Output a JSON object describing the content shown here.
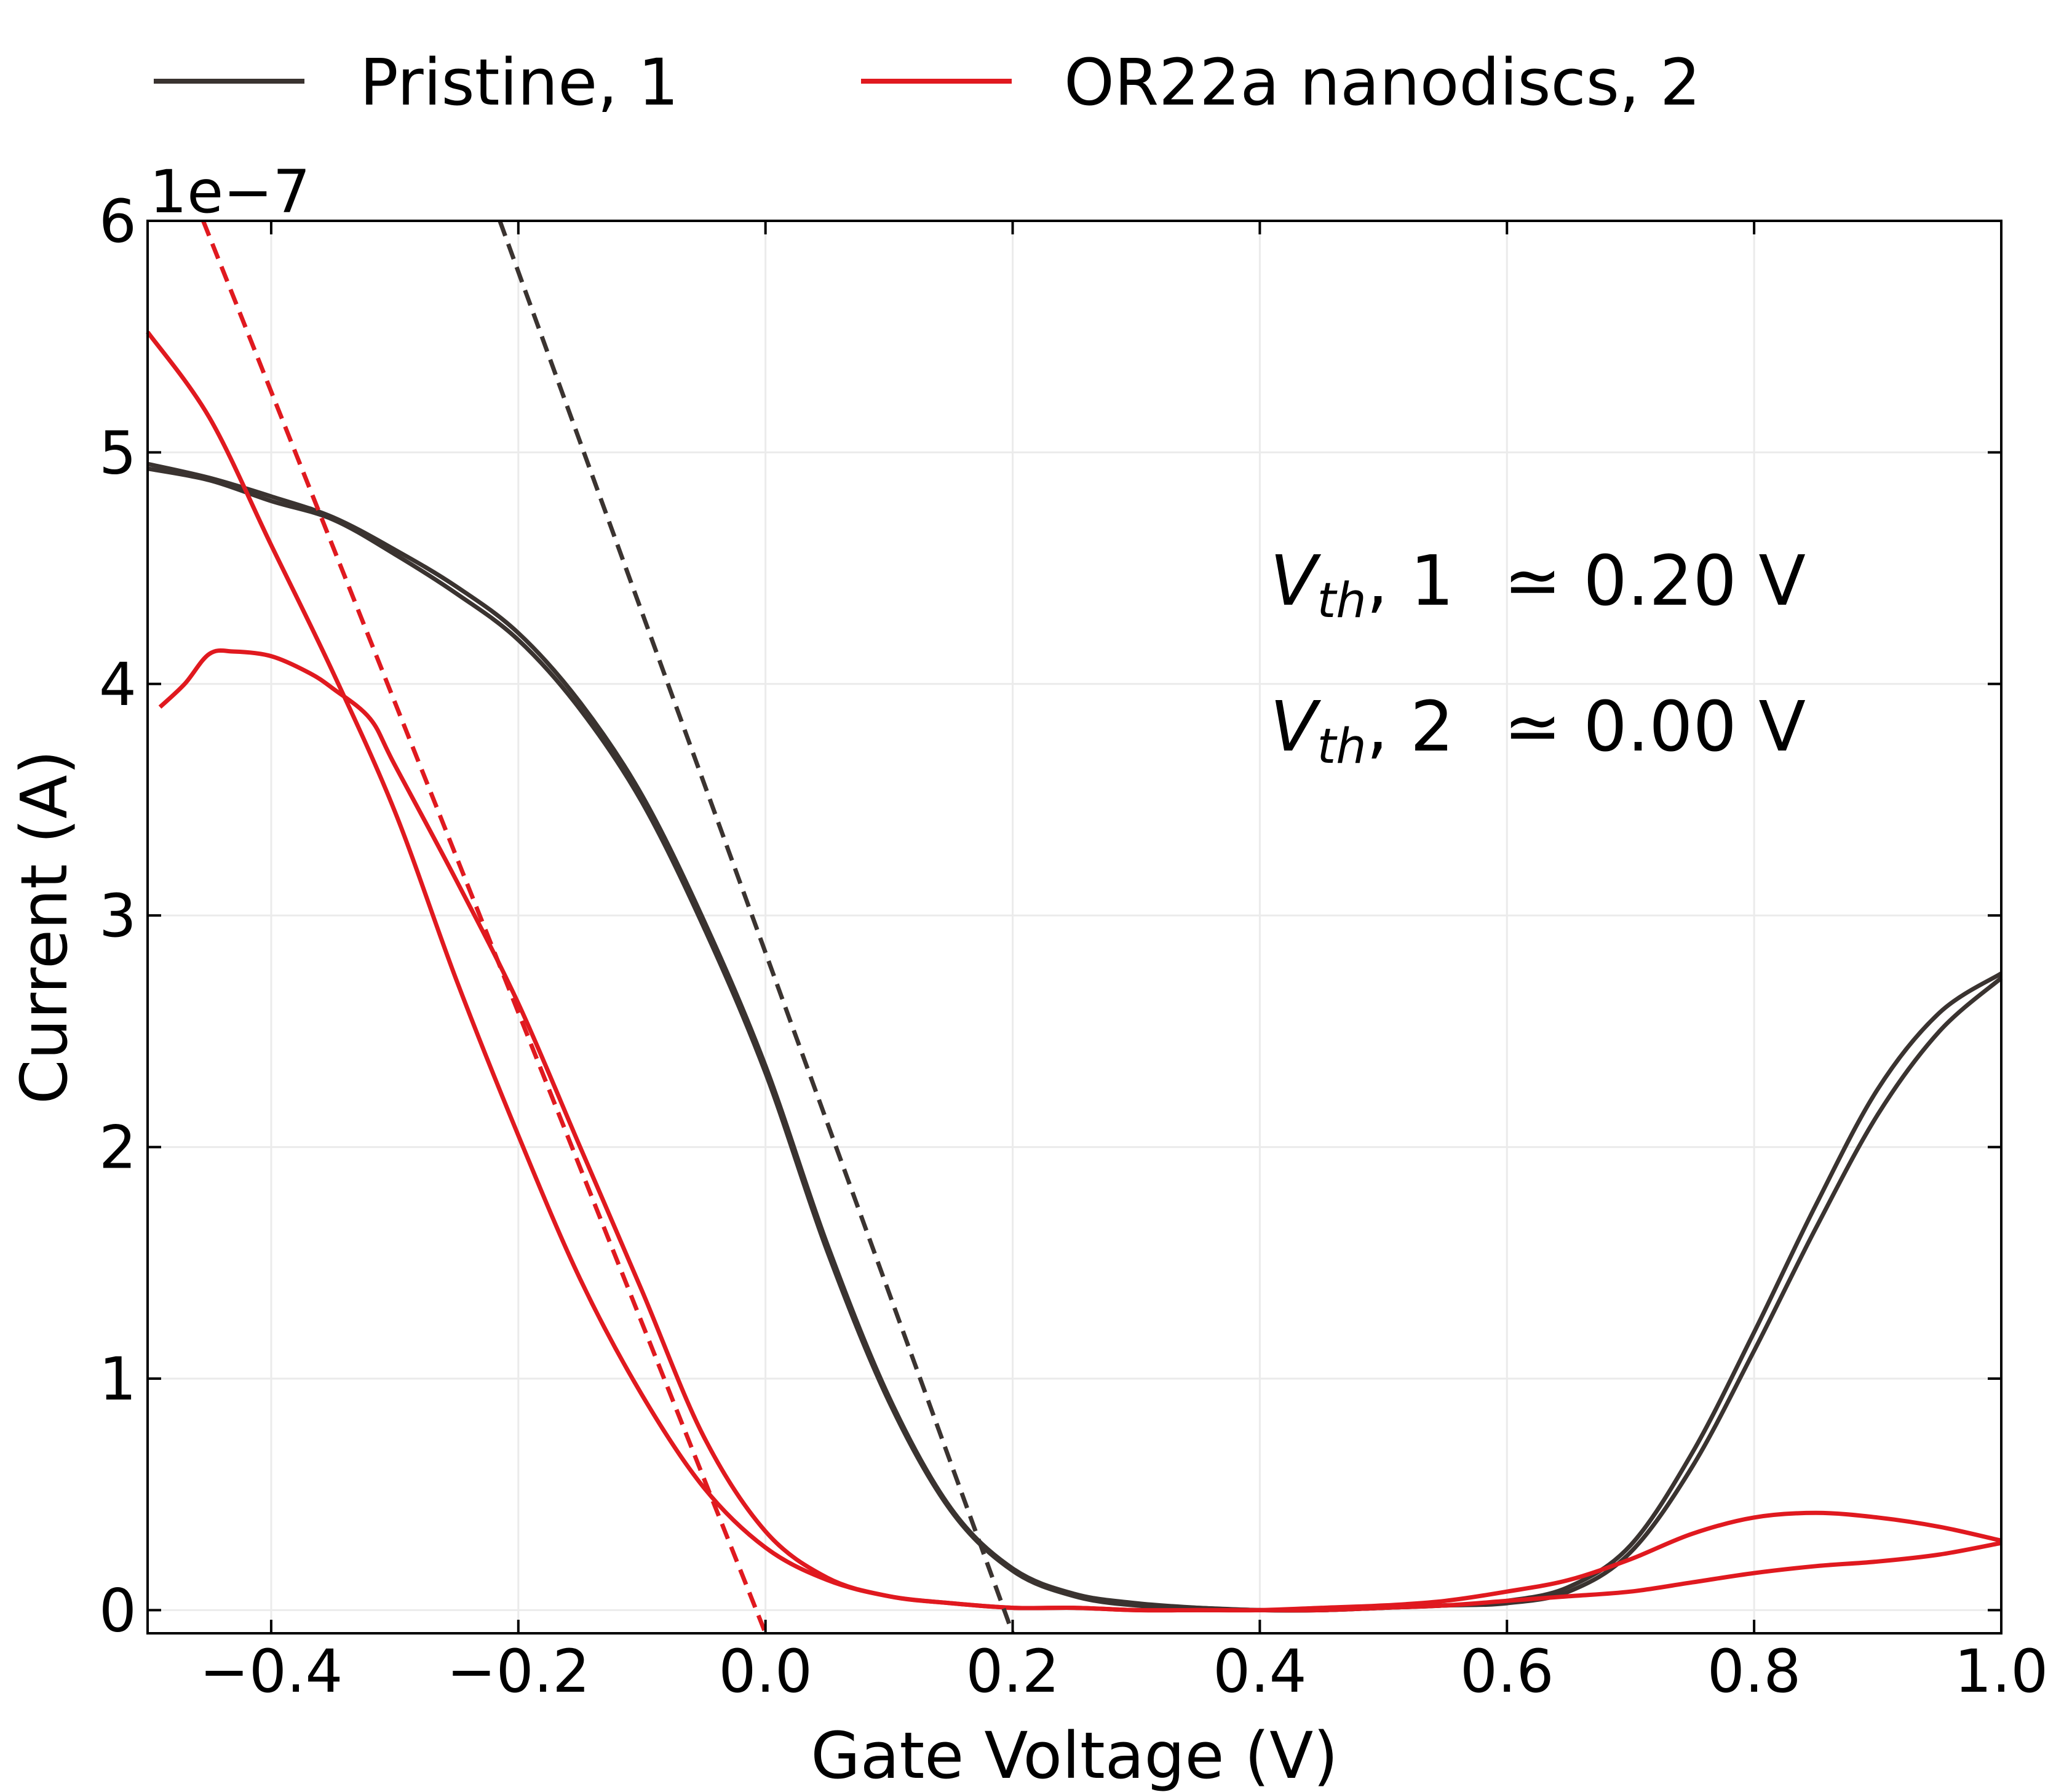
{
  "chart_data": {
    "type": "line",
    "xlabel": "Gate Voltage (V)",
    "ylabel": "Current (A)",
    "y_scale_label": "1e−7",
    "xlim": [
      -0.5,
      1.0
    ],
    "ylim": [
      -0.1,
      6.0
    ],
    "xticks": [
      -0.4,
      -0.2,
      0.0,
      0.2,
      0.4,
      0.6,
      0.8,
      1.0
    ],
    "xtick_labels": [
      "−0.4",
      "−0.2",
      "0.0",
      "0.2",
      "0.4",
      "0.6",
      "0.8",
      "1.0"
    ],
    "yticks": [
      0,
      1,
      2,
      3,
      4,
      5,
      6
    ],
    "ytick_labels": [
      "0",
      "1",
      "2",
      "3",
      "4",
      "5",
      "6"
    ],
    "grid": true,
    "legend_position": "top",
    "series": [
      {
        "name": "Pristine, 1",
        "color": "#3a3330",
        "style": "solid",
        "x": [
          -0.5,
          -0.45,
          -0.4,
          -0.35,
          -0.3,
          -0.25,
          -0.2,
          -0.15,
          -0.1,
          -0.05,
          0.0,
          0.05,
          0.1,
          0.15,
          0.2,
          0.25,
          0.3,
          0.35,
          0.4,
          0.45,
          0.5,
          0.55,
          0.6,
          0.65,
          0.7,
          0.75,
          0.8,
          0.85,
          0.9,
          0.95,
          1.0
        ],
        "y": [
          4.95,
          4.89,
          4.81,
          4.72,
          4.58,
          4.42,
          4.22,
          3.92,
          3.52,
          2.98,
          2.35,
          1.58,
          0.92,
          0.44,
          0.18,
          0.07,
          0.03,
          0.01,
          0.0,
          0.0,
          0.01,
          0.02,
          0.04,
          0.1,
          0.28,
          0.68,
          1.2,
          1.75,
          2.25,
          2.58,
          2.75
        ]
      },
      {
        "name": "Pristine, 1 (reverse sweep)",
        "color": "#3a3330",
        "style": "solid",
        "x": [
          -0.5,
          -0.45,
          -0.4,
          -0.35,
          -0.3,
          -0.25,
          -0.2,
          -0.15,
          -0.1,
          -0.05,
          0.0,
          0.05,
          0.1,
          0.15,
          0.2,
          0.25,
          0.3,
          0.35,
          0.4,
          0.45,
          0.5,
          0.55,
          0.6,
          0.65,
          0.7,
          0.75,
          0.8,
          0.85,
          0.9,
          0.95,
          1.0
        ],
        "y": [
          4.93,
          4.88,
          4.79,
          4.71,
          4.56,
          4.39,
          4.19,
          3.89,
          3.49,
          2.95,
          2.32,
          1.55,
          0.9,
          0.43,
          0.17,
          0.06,
          0.02,
          0.01,
          0.0,
          0.0,
          0.01,
          0.02,
          0.03,
          0.08,
          0.25,
          0.62,
          1.12,
          1.65,
          2.14,
          2.5,
          2.73
        ]
      },
      {
        "name": "OR22a nanodiscs, 2",
        "color": "#e0191f",
        "style": "solid",
        "x": [
          -0.5,
          -0.45,
          -0.4,
          -0.35,
          -0.3,
          -0.25,
          -0.2,
          -0.15,
          -0.1,
          -0.05,
          0.0,
          0.05,
          0.1,
          0.15,
          0.2,
          0.25,
          0.3,
          0.35,
          0.4,
          0.45,
          0.5,
          0.55,
          0.6,
          0.65,
          0.7,
          0.75,
          0.8,
          0.85,
          0.9,
          0.95,
          1.0
        ],
        "y": [
          5.52,
          5.15,
          4.6,
          4.05,
          3.45,
          2.72,
          2.05,
          1.43,
          0.93,
          0.53,
          0.27,
          0.13,
          0.06,
          0.03,
          0.01,
          0.01,
          0.0,
          0.0,
          0.0,
          0.01,
          0.02,
          0.04,
          0.08,
          0.13,
          0.22,
          0.33,
          0.4,
          0.42,
          0.4,
          0.36,
          0.3
        ]
      },
      {
        "name": "OR22a nanodiscs, 2 (reverse sweep)",
        "color": "#e0191f",
        "style": "solid",
        "x": [
          -0.49,
          -0.47,
          -0.45,
          -0.43,
          -0.4,
          -0.37,
          -0.35,
          -0.32,
          -0.3,
          -0.25,
          -0.2,
          -0.15,
          -0.1,
          -0.05,
          0.0,
          0.05,
          0.1,
          0.15,
          0.2,
          0.25,
          0.3,
          0.35,
          0.4,
          0.45,
          0.5,
          0.55,
          0.6,
          0.65,
          0.7,
          0.75,
          0.8,
          0.85,
          0.9,
          0.95,
          1.0
        ],
        "y": [
          3.9,
          4.0,
          4.13,
          4.14,
          4.12,
          4.05,
          3.98,
          3.85,
          3.65,
          3.15,
          2.62,
          2.0,
          1.38,
          0.75,
          0.34,
          0.14,
          0.06,
          0.03,
          0.01,
          0.01,
          0.0,
          0.0,
          0.0,
          0.0,
          0.01,
          0.02,
          0.04,
          0.06,
          0.08,
          0.12,
          0.16,
          0.19,
          0.21,
          0.24,
          0.29
        ]
      },
      {
        "name": "Pristine linear fit",
        "color": "#3a3330",
        "style": "dashed",
        "x": [
          -0.215,
          0.2
        ],
        "y": [
          6.0,
          -0.1
        ]
      },
      {
        "name": "OR22a linear fit",
        "color": "#e0191f",
        "style": "dashed",
        "x": [
          -0.455,
          0.0
        ],
        "y": [
          6.0,
          -0.1
        ]
      }
    ],
    "legend": [
      {
        "label": "Pristine, 1",
        "color": "#3a3330"
      },
      {
        "label": "OR22a nanodiscs, 2",
        "color": "#e0191f"
      }
    ],
    "annotations": [
      {
        "symbol": "V",
        "subscript": "th",
        "rest": ", 1",
        "value": "≃ 0.20 V"
      },
      {
        "symbol": "V",
        "subscript": "th",
        "rest": ", 2",
        "value": "≃ 0.00 V"
      }
    ]
  }
}
